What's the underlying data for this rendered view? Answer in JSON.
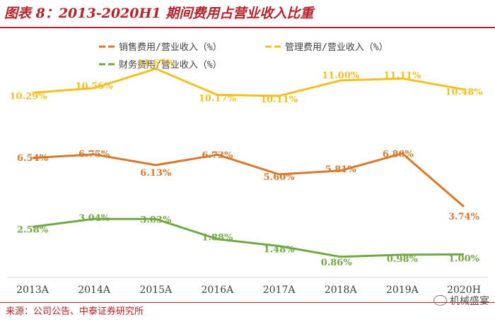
{
  "header": {
    "title": "图表 8：2013-2020H1 期间费用占营业收入比重",
    "source": "来源：公司公告、中泰证券研究所",
    "watermark": "机械盛宴"
  },
  "chart_data": {
    "type": "line",
    "title": "图表 8：2013-2020H1 期间费用占营业收入比重",
    "categories": [
      "2013A",
      "2014A",
      "2015A",
      "2016A",
      "2017A",
      "2018A",
      "2019A",
      "2020H"
    ],
    "ylim": [
      0,
      14
    ],
    "grid": false,
    "legend_position": "top",
    "series": [
      {
        "name": "销售费用/营业收入（%）",
        "color": "#d9772b",
        "values": [
          6.54,
          6.75,
          6.13,
          6.73,
          5.6,
          5.81,
          6.8,
          3.74
        ],
        "labels": [
          "6.54%",
          "6.75%",
          "6.13%",
          "6.73%",
          "5.60%",
          "5.81%",
          "6.80%",
          "3.74%"
        ]
      },
      {
        "name": "管理费用/营业收入（%）",
        "color": "#f2c021",
        "values": [
          10.29,
          10.56,
          11.67,
          10.17,
          10.11,
          11.0,
          11.11,
          10.48
        ],
        "labels": [
          "10.29%",
          "10.56%",
          "11.67%",
          "10.17%",
          "10.11%",
          "11.00%",
          "11.11%",
          "10.48%"
        ]
      },
      {
        "name": "财务费用/营业收入（%）",
        "color": "#72a843",
        "values": [
          2.58,
          3.04,
          3.03,
          1.88,
          1.48,
          0.86,
          0.98,
          1.0
        ],
        "labels": [
          "2.58%",
          "3.04%",
          "3.03%",
          "1.88%",
          "1.48%",
          "0.86%",
          "0.98%",
          "1.00%"
        ]
      }
    ]
  }
}
